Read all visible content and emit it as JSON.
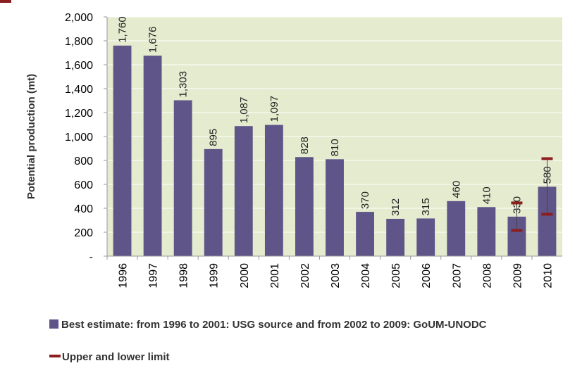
{
  "chart_data": {
    "type": "bar",
    "categories": [
      "1996",
      "1997",
      "1998",
      "1999",
      "2000",
      "2001",
      "2002",
      "2003",
      "2004",
      "2005",
      "2006",
      "2007",
      "2008",
      "2009",
      "2010"
    ],
    "series": [
      {
        "name": "Best estimate: from 1996 to 2001: USG source and from 2002 to 2009: GoUM-UNODC",
        "values": [
          1760,
          1676,
          1303,
          895,
          1087,
          1097,
          828,
          810,
          370,
          312,
          315,
          460,
          410,
          330,
          580
        ],
        "labels": [
          "1,760",
          "1,676",
          "1,303",
          "895",
          "1,087",
          "1,097",
          "828",
          "810",
          "370",
          "312",
          "315",
          "460",
          "410",
          "330",
          "580"
        ],
        "color": "#5f5589"
      }
    ],
    "error_ranges": [
      {
        "category": "2009",
        "lower": 215,
        "upper": 445
      },
      {
        "category": "2010",
        "lower": 350,
        "upper": 815
      }
    ],
    "error_series_name": "Upper and lower limit",
    "error_color": "#8b1e1e",
    "ylabel": "Potential production (mt)",
    "ylim": [
      0,
      2000
    ],
    "yticks": [
      0,
      200,
      400,
      600,
      800,
      1000,
      1200,
      1400,
      1600,
      1800,
      2000
    ],
    "ytick_labels": [
      "-",
      "200",
      "400",
      "600",
      "800",
      "1,000",
      "1,200",
      "1,400",
      "1,600",
      "1,800",
      "2,000"
    ],
    "plot_background": "#e4ebce",
    "grid": true,
    "grid_color": "#ffffff",
    "legend_position": "bottom"
  }
}
